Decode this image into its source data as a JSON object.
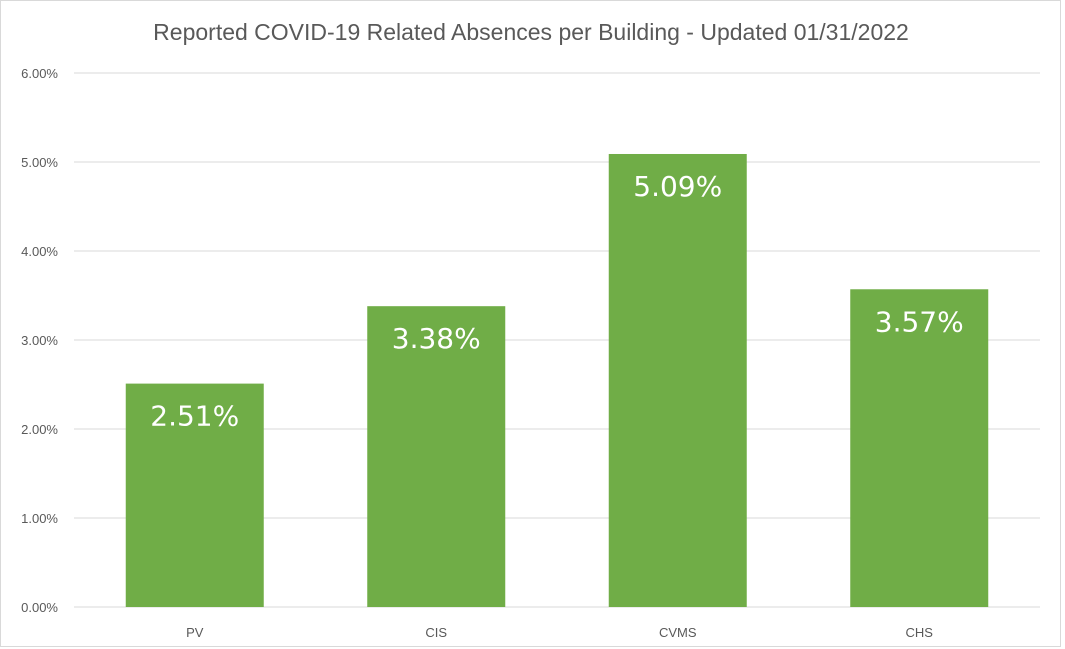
{
  "chart_data": {
    "type": "bar",
    "title": "Reported COVID-19 Related Absences per Building - Updated 01/31/2022",
    "xlabel": "",
    "ylabel": "",
    "categories": [
      "PV",
      "CIS",
      "CVMS",
      "CHS"
    ],
    "values": [
      2.51,
      3.38,
      5.09,
      3.57
    ],
    "data_labels": [
      "2.51%",
      "3.38%",
      "5.09%",
      "3.57%"
    ],
    "ylim": [
      0,
      6
    ],
    "y_ticks": [
      0,
      1,
      2,
      3,
      4,
      5,
      6
    ],
    "y_tick_labels": [
      "0.00%",
      "1.00%",
      "2.00%",
      "3.00%",
      "4.00%",
      "5.00%",
      "6.00%"
    ],
    "grid": true,
    "legend": "none",
    "colors": {
      "bar": "#70ad47",
      "grid": "#d9d9d9",
      "text": "#595959",
      "label": "#ffffff"
    }
  }
}
